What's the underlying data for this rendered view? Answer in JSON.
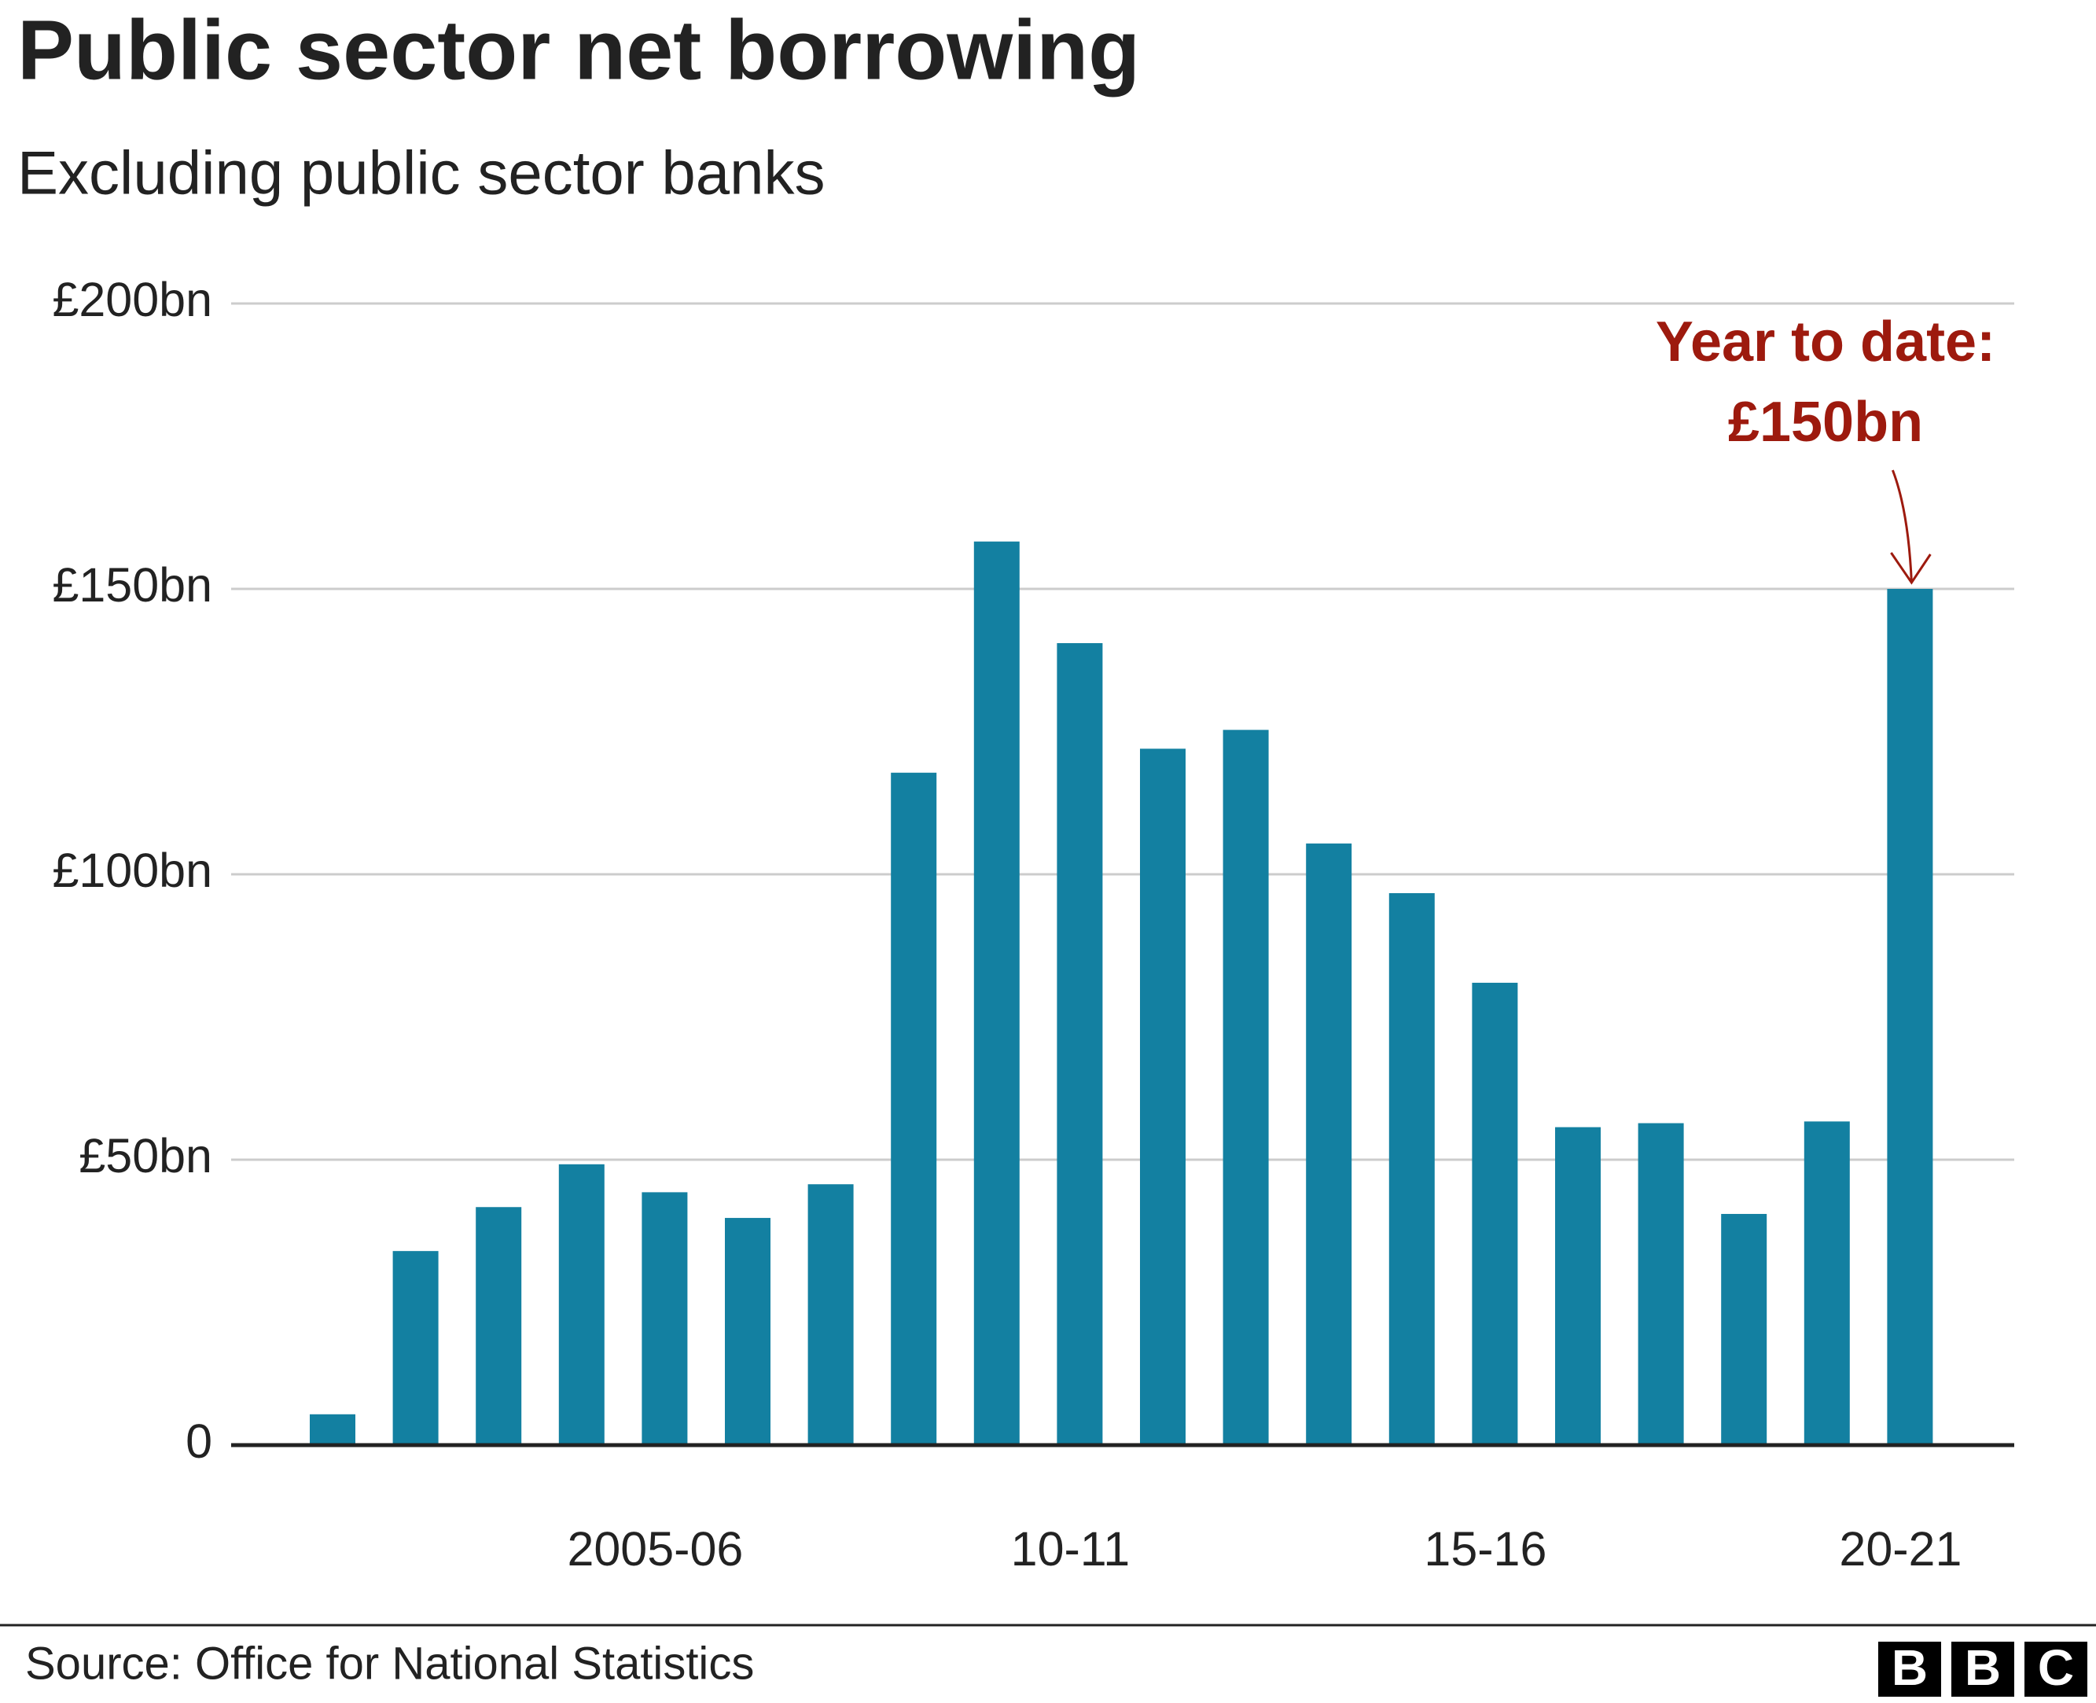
{
  "chart_data": {
    "type": "bar",
    "title": "Public sector net borrowing",
    "subtitle": "Excluding public sector banks",
    "categories": [
      null,
      null,
      null,
      null,
      "2005-06",
      null,
      null,
      null,
      null,
      "10-11",
      null,
      null,
      null,
      null,
      "15-16",
      null,
      null,
      null,
      null,
      "20-21"
    ],
    "values": [
      5.4,
      34,
      41.7,
      49.2,
      44.3,
      39.8,
      45.7,
      117.8,
      158.3,
      140.5,
      122,
      125.3,
      105.4,
      96.7,
      81,
      55.7,
      56.4,
      40.5,
      56.7,
      150
    ],
    "color": "#1380a1",
    "ylim": [
      0,
      200
    ],
    "yticks": [
      0,
      {
        "value": 50,
        "label": "£50bn"
      },
      {
        "value": 100,
        "label": "£100bn"
      },
      {
        "value": 150,
        "label": "£150bn"
      },
      {
        "value": 200,
        "label": "£200bn"
      }
    ],
    "grid": true,
    "annotation": {
      "lines": [
        "Year to date:",
        "£150bn"
      ],
      "color": "#9d1a0e"
    }
  },
  "source": "Source: Office for National Statistics",
  "logo": [
    "B",
    "B",
    "C"
  ]
}
